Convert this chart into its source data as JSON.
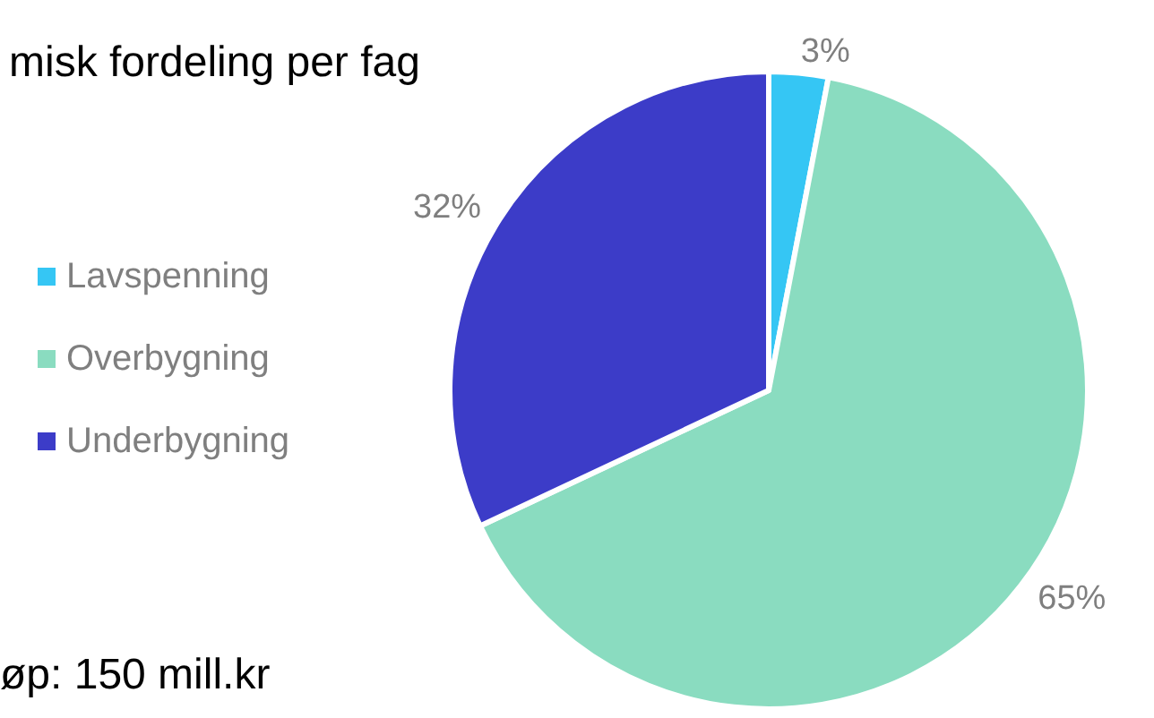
{
  "chart_data": {
    "type": "pie",
    "title": "misk fordeling per fag",
    "categories": [
      "Lavspenning",
      "Overbygning",
      "Underbygning"
    ],
    "values": [
      3,
      65,
      32
    ],
    "colors": [
      "#35c6f4",
      "#8adcc0",
      "#3c3cc8"
    ],
    "value_labels": [
      "3%",
      "65%",
      "32%"
    ],
    "legend": "left",
    "annotations": [
      "øp: 150 mill.kr"
    ]
  }
}
